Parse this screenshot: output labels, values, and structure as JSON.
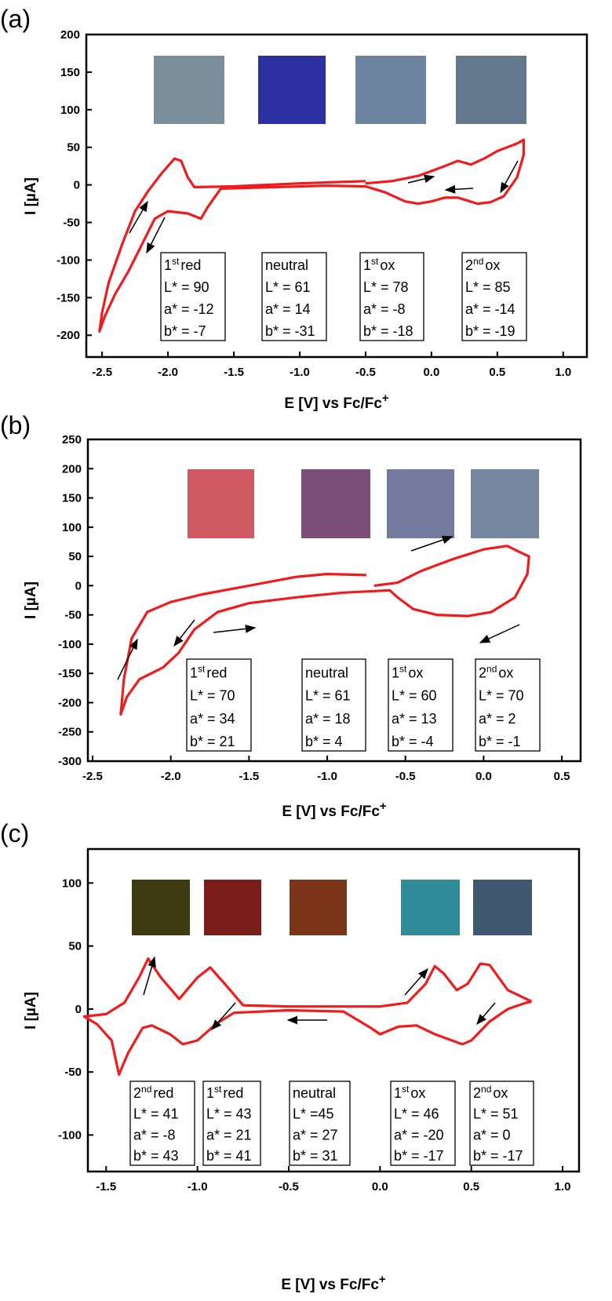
{
  "chart_data": [
    {
      "type": "line",
      "panel_label": "(a)",
      "y_label": "I [µA]",
      "x_label": {
        "text": "E [V] vs Fc/Fc",
        "superscript": "+"
      },
      "color": "#ee1c1c",
      "xlim": [
        -2.62,
        1.18
      ],
      "ylim": [
        -229,
        200
      ],
      "xticks": [
        -2.5,
        {
          "value": -2,
          "label": "-2.0"
        },
        -1.5,
        {
          "value": -1,
          "label": "-1.0"
        },
        -0.5,
        {
          "value": 0,
          "label": "0.0"
        },
        0.5,
        {
          "value": 1,
          "label": "1.0"
        }
      ],
      "yticks": [
        200,
        150,
        100,
        50,
        0,
        -50,
        -100,
        -150,
        -200
      ],
      "x": [
        -0.5,
        -0.3,
        -0.1,
        0.1,
        0.2,
        0.3,
        0.4,
        0.5,
        0.65,
        0.7,
        0.7,
        0.65,
        0.55,
        0.45,
        0.35,
        0.2,
        0.1,
        0,
        -0.1,
        -0.2,
        -0.35,
        -0.5,
        -0.8,
        -1.2,
        -1.6,
        -1.7,
        -1.75,
        -1.85,
        -2.0,
        -2.1,
        -2.2,
        -2.3,
        -2.4,
        -2.48,
        -2.52,
        -2.5,
        -2.45,
        -2.35,
        -2.25,
        -2.15,
        -2.05,
        -1.95,
        -1.9,
        -1.85,
        -1.8,
        -1.5,
        -1.0,
        -0.5
      ],
      "values": [
        2,
        5,
        12,
        25,
        32,
        27,
        35,
        45,
        55,
        60,
        40,
        10,
        -15,
        -23,
        -25,
        -17,
        -17,
        -22,
        -25,
        -22,
        -10,
        -2,
        -1,
        -3,
        -5,
        -30,
        -45,
        -38,
        -35,
        -45,
        -80,
        -115,
        -145,
        -175,
        -195,
        -170,
        -130,
        -80,
        -35,
        -8,
        15,
        35,
        32,
        10,
        -3,
        -2,
        2,
        5
      ],
      "swatches": [
        "#7b8f9b",
        "#2b2fa0",
        "#6d84a0",
        "#63788d"
      ],
      "annotations": [
        {
          "ordinal": "1",
          "suffix": "st",
          "state": "red",
          "lines": [
            "L* = 90",
            "a* = -12",
            "b* = -7"
          ]
        },
        {
          "state": "neutral",
          "lines": [
            "L* = 61",
            "a* = 14",
            "b* = -31"
          ]
        },
        {
          "ordinal": "1",
          "suffix": "st",
          "state": "ox",
          "lines": [
            "L* = 78",
            "a* = -8",
            "b* = -18"
          ]
        },
        {
          "ordinal": "2",
          "suffix": "nd",
          "state": "ox",
          "lines": [
            "L* = 85",
            "a* = -14",
            "b* = -19"
          ]
        }
      ]
    },
    {
      "type": "line",
      "panel_label": "(b)",
      "y_label": "I [µA]",
      "x_label": {
        "text": "E [V] vs Fc/Fc",
        "superscript": "+"
      },
      "color": "#ee1c1c",
      "xlim": [
        -2.53,
        0.62
      ],
      "ylim": [
        -300,
        250
      ],
      "xticks": [
        -2.5,
        {
          "value": -2,
          "label": "-2.0"
        },
        -1.5,
        {
          "value": -1,
          "label": "-1.0"
        },
        -0.5,
        {
          "value": 0,
          "label": "0.0"
        },
        0.5
      ],
      "yticks": [
        250,
        200,
        150,
        100,
        50,
        0,
        -50,
        -100,
        -150,
        -200,
        -250,
        -300
      ],
      "x": [
        -0.75,
        -1.0,
        -1.2,
        -1.5,
        -1.8,
        -2.0,
        -2.15,
        -2.25,
        -2.3,
        -2.32,
        -2.28,
        -2.2,
        -2.05,
        -1.95,
        -1.85,
        -1.7,
        -1.5,
        -1.2,
        -0.9,
        -0.6,
        -0.55,
        -0.45,
        -0.3,
        -0.1,
        0.05,
        0.2,
        0.28,
        0.29,
        0.25,
        0.15,
        0.0,
        -0.2,
        -0.4,
        -0.55,
        -0.7
      ],
      "values": [
        18,
        20,
        15,
        0,
        -15,
        -28,
        -45,
        -90,
        -160,
        -220,
        -190,
        -160,
        -140,
        -115,
        -75,
        -45,
        -30,
        -20,
        -12,
        -8,
        -20,
        -40,
        -50,
        -52,
        -45,
        -20,
        20,
        50,
        55,
        68,
        62,
        45,
        25,
        5,
        0
      ],
      "swatches": [
        "#cf5a63",
        "#7c4d78",
        "#7479a0",
        "#7687a0"
      ],
      "annotations": [
        {
          "ordinal": "1",
          "suffix": "st",
          "state": "red",
          "lines": [
            "L* = 70",
            "a* = 34",
            "b* = 21"
          ]
        },
        {
          "state": "neutral",
          "lines": [
            "L* = 61",
            "a* = 18",
            "b* = 4"
          ]
        },
        {
          "ordinal": "1",
          "suffix": "st",
          "state": "ox",
          "lines": [
            "L* = 60",
            "a* = 13",
            "b* = -4"
          ]
        },
        {
          "ordinal": "2",
          "suffix": "nd",
          "state": "ox",
          "lines": [
            "L* = 70",
            "a* = 2",
            "b* = -1"
          ]
        }
      ]
    },
    {
      "type": "line",
      "panel_label": "(c)",
      "y_label": "I [µA]",
      "x_label": {
        "text": "E [V] vs Fc/Fc",
        "superscript": "+"
      },
      "color": "#ee1c1c",
      "xlim": [
        -1.6,
        1.09
      ],
      "ylim": [
        -129,
        127
      ],
      "xticks": [
        -1.5,
        {
          "value": -1,
          "label": "-1.0"
        },
        -0.5,
        {
          "value": 0,
          "label": "0.0"
        },
        0.5,
        {
          "value": 1,
          "label": "1.0"
        }
      ],
      "yticks": [
        100,
        50,
        0,
        -50,
        -100
      ],
      "x": [
        0.83,
        0.7,
        0.6,
        0.55,
        0.48,
        0.42,
        0.35,
        0.3,
        0.25,
        0.15,
        0,
        -0.5,
        -0.75,
        -0.85,
        -0.93,
        -1.0,
        -1.1,
        -1.2,
        -1.27,
        -1.32,
        -1.4,
        -1.5,
        -1.62,
        -1.55,
        -1.47,
        -1.43,
        -1.38,
        -1.3,
        -1.25,
        -1.15,
        -1.08,
        -1.0,
        -0.9,
        -0.8,
        -0.5,
        -0.2,
        -0.05,
        0.0,
        0.1,
        0.2,
        0.3,
        0.45,
        0.5,
        0.6,
        0.7,
        0.8,
        0.83
      ],
      "values": [
        6,
        15,
        35,
        36,
        20,
        15,
        28,
        34,
        20,
        5,
        2,
        2,
        3,
        20,
        33,
        25,
        8,
        25,
        40,
        25,
        5,
        -4,
        -6,
        -12,
        -25,
        -52,
        -35,
        -15,
        -13,
        -20,
        -28,
        -25,
        -12,
        -3,
        -1,
        -2,
        -15,
        -20,
        -14,
        -13,
        -20,
        -28,
        -25,
        -10,
        0,
        5,
        6
      ],
      "swatches": [
        "#3e3a12",
        "#7a1c18",
        "#7a3417",
        "#2f8c98",
        "#3f5870"
      ],
      "annotations": [
        {
          "ordinal": "2",
          "suffix": "nd",
          "state": "red",
          "lines": [
            "L* = 41",
            "a* = -8",
            "b* = 43"
          ]
        },
        {
          "ordinal": "1",
          "suffix": "st",
          "state": "red",
          "lines": [
            "L* = 43",
            "a* = 21",
            "b* = 41"
          ]
        },
        {
          "state": "neutral",
          "lines": [
            "L* =45",
            "a* = 27",
            "b* = 31"
          ]
        },
        {
          "ordinal": "1",
          "suffix": "st",
          "state": "ox",
          "lines": [
            "L* = 46",
            "a* = -20",
            "b* = -17"
          ]
        },
        {
          "ordinal": "2",
          "suffix": "nd",
          "state": "ox",
          "lines": [
            "L* = 51",
            "a* = 0",
            "b* = -17"
          ]
        }
      ]
    }
  ]
}
